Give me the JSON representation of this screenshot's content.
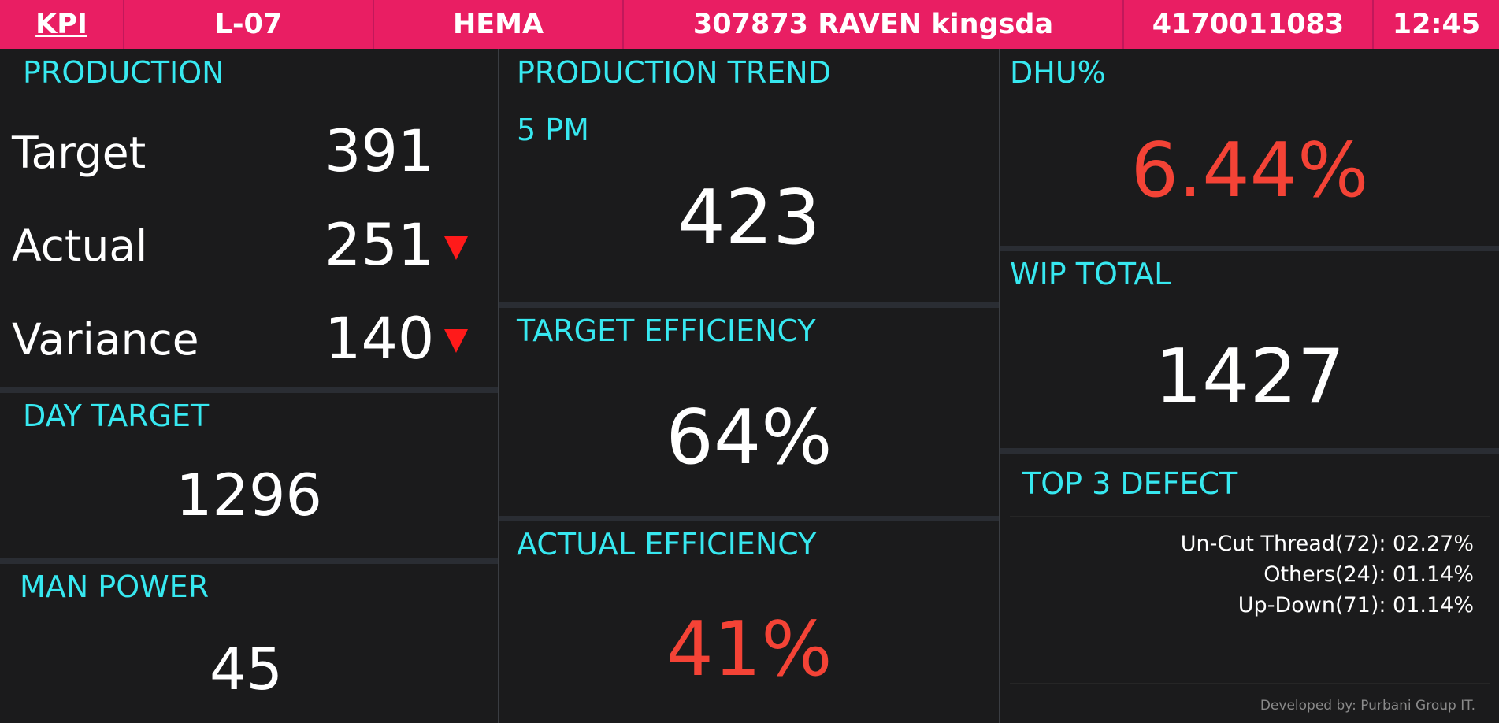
{
  "header": {
    "kpi": "KPI",
    "line": "L-07",
    "name": "HEMA",
    "style": "307873 RAVEN kingsda",
    "order": "4170011083",
    "time": "12:45"
  },
  "production": {
    "title": "PRODUCTION",
    "target_label": "Target",
    "target_value": "391",
    "actual_label": "Actual",
    "actual_value": "251",
    "variance_label": "Variance",
    "variance_value": "140"
  },
  "day_target": {
    "title": "DAY TARGET",
    "value": "1296"
  },
  "man_power": {
    "title": "MAN POWER",
    "value": "45"
  },
  "production_trend": {
    "title": "PRODUCTION TREND",
    "hour": "5 PM",
    "value": "423"
  },
  "target_efficiency": {
    "title": "TARGET EFFICIENCY",
    "value": "64%"
  },
  "actual_efficiency": {
    "title": "ACTUAL EFFICIENCY",
    "value": "41%"
  },
  "dhu": {
    "title": "DHU%",
    "value": "6.44%"
  },
  "wip_total": {
    "title": "WIP TOTAL",
    "value": "1427"
  },
  "top_defect": {
    "title": "TOP 3 DEFECT",
    "items": [
      "Un-Cut Thread(72): 02.27%",
      "Others(24): 01.14%",
      "Up-Down(71): 01.14%"
    ]
  },
  "footer": "Developed by: Purbani Group IT.",
  "colors": {
    "header_bg": "#e91e63",
    "title_cyan": "#37e8f0",
    "alert_red": "#f44336",
    "arrow_red": "#ff1a1a",
    "panel_bg": "#1b1b1c"
  }
}
